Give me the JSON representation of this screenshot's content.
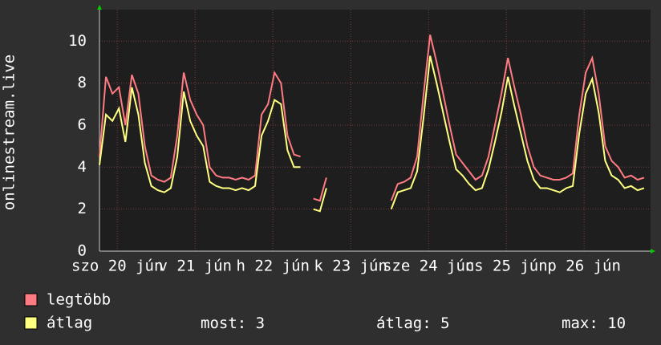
{
  "chart_data": {
    "type": "line",
    "ylabel": "onlinestream.live",
    "x": [
      0,
      2,
      4,
      6,
      8,
      10,
      12,
      14,
      16,
      18,
      20,
      22,
      24,
      26,
      28,
      30,
      32,
      34,
      36,
      38,
      40,
      42,
      44,
      46,
      48,
      50,
      52,
      54,
      56,
      58,
      60,
      62,
      64,
      66,
      68,
      70,
      72,
      74,
      76,
      78,
      80,
      82,
      84,
      86,
      88,
      90,
      92,
      94,
      96,
      98,
      100,
      102,
      104,
      106,
      108,
      110,
      112,
      114,
      116,
      118,
      120,
      122,
      124,
      126,
      128,
      130,
      132,
      134,
      136,
      138,
      140,
      142,
      144,
      146,
      148,
      150,
      152,
      154,
      156,
      158,
      160,
      162,
      164,
      166,
      168
    ],
    "series": [
      {
        "name": "legtöbb",
        "color": "#ff7b82",
        "values": [
          4.5,
          8.3,
          7.5,
          7.8,
          6.0,
          8.4,
          7.5,
          5.0,
          3.6,
          3.4,
          3.3,
          3.5,
          5.5,
          8.5,
          7.2,
          6.5,
          6.0,
          4.0,
          3.6,
          3.5,
          3.5,
          3.4,
          3.5,
          3.4,
          3.6,
          6.5,
          7.0,
          8.5,
          8.0,
          5.5,
          4.6,
          4.5,
          null,
          2.5,
          2.4,
          3.5,
          null,
          null,
          null,
          null,
          null,
          null,
          null,
          null,
          null,
          2.4,
          3.2,
          3.3,
          3.5,
          4.5,
          7.5,
          10.3,
          9.0,
          7.5,
          6.0,
          4.6,
          4.2,
          3.8,
          3.4,
          3.6,
          4.5,
          6.0,
          7.5,
          9.2,
          7.8,
          6.5,
          5.0,
          4.0,
          3.6,
          3.5,
          3.4,
          3.4,
          3.5,
          3.7,
          6.5,
          8.5,
          9.2,
          7.5,
          5.0,
          4.3,
          4.0,
          3.5,
          3.6,
          3.4,
          3.5
        ]
      },
      {
        "name": "átlag",
        "color": "#ffff80",
        "values": [
          4.1,
          6.5,
          6.2,
          6.8,
          5.2,
          7.8,
          6.5,
          4.2,
          3.1,
          2.9,
          2.8,
          3.0,
          4.5,
          7.6,
          6.2,
          5.5,
          5.0,
          3.3,
          3.1,
          3.0,
          3.0,
          2.9,
          3.0,
          2.9,
          3.1,
          5.5,
          6.2,
          7.2,
          7.0,
          4.8,
          4.0,
          4.0,
          null,
          2.0,
          1.9,
          3.0,
          null,
          null,
          null,
          null,
          null,
          null,
          null,
          null,
          null,
          2.0,
          2.8,
          2.9,
          3.0,
          3.8,
          6.4,
          9.3,
          8.0,
          6.6,
          5.2,
          3.9,
          3.6,
          3.2,
          2.9,
          3.0,
          3.9,
          5.2,
          6.6,
          8.3,
          6.9,
          5.6,
          4.3,
          3.4,
          3.0,
          3.0,
          2.9,
          2.8,
          3.0,
          3.1,
          5.6,
          7.5,
          8.2,
          6.6,
          4.3,
          3.6,
          3.4,
          3.0,
          3.1,
          2.9,
          3.0
        ]
      }
    ],
    "xlim": [
      0,
      170
    ],
    "xticks": [
      {
        "value": 5.5,
        "label": "szo 20 jún"
      },
      {
        "value": 29.5,
        "label": "v 21 jún"
      },
      {
        "value": 53.5,
        "label": "h 22 jún"
      },
      {
        "value": 77.5,
        "label": "k 23 jún"
      },
      {
        "value": 101.5,
        "label": "sze 24 jún"
      },
      {
        "value": 125.5,
        "label": "cs 25 jún"
      },
      {
        "value": 149.5,
        "label": "p 26 jún"
      }
    ],
    "ylim": [
      0,
      11.5
    ],
    "yticks": [
      0,
      2,
      4,
      6,
      8,
      10
    ],
    "grid": true,
    "stats": [
      {
        "label": "most:",
        "value": 3
      },
      {
        "label": "átlag:",
        "value": 5
      },
      {
        "label": "max:",
        "value": 10
      }
    ]
  }
}
